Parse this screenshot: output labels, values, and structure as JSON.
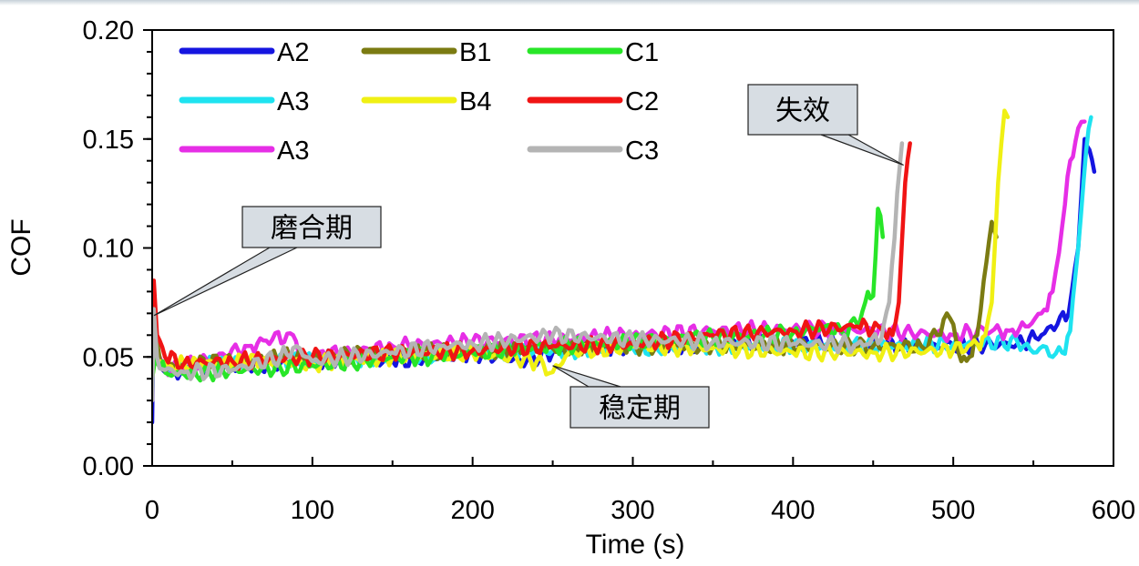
{
  "chart_data": {
    "type": "line",
    "xlabel": "Time (s)",
    "ylabel": "COF",
    "xlim": [
      0,
      600
    ],
    "ylim": [
      0,
      0.2
    ],
    "xticks": [
      0,
      100,
      200,
      300,
      400,
      500,
      600
    ],
    "xtick_labels": [
      "0",
      "100",
      "200",
      "300",
      "400",
      "500",
      "600"
    ],
    "yticks": [
      0,
      0.05,
      0.1,
      0.15,
      0.2
    ],
    "ytick_labels": [
      "0.00",
      "0.05",
      "0.10",
      "0.15",
      "0.20"
    ],
    "grid": false,
    "legend_position": "top-left",
    "series": [
      {
        "name": "A2",
        "color": "#1515e0",
        "points": [
          [
            0,
            0.02
          ],
          [
            1,
            0.08
          ],
          [
            3,
            0.05
          ],
          [
            8,
            0.043
          ],
          [
            20,
            0.044
          ],
          [
            40,
            0.045
          ],
          [
            60,
            0.046
          ],
          [
            80,
            0.047
          ],
          [
            100,
            0.048
          ],
          [
            120,
            0.05
          ],
          [
            150,
            0.048
          ],
          [
            180,
            0.05
          ],
          [
            200,
            0.052
          ],
          [
            230,
            0.048
          ],
          [
            250,
            0.052
          ],
          [
            280,
            0.054
          ],
          [
            300,
            0.055
          ],
          [
            350,
            0.056
          ],
          [
            400,
            0.057
          ],
          [
            450,
            0.056
          ],
          [
            500,
            0.055
          ],
          [
            540,
            0.056
          ],
          [
            555,
            0.06
          ],
          [
            565,
            0.065
          ],
          [
            572,
            0.07
          ],
          [
            578,
            0.1
          ],
          [
            582,
            0.15
          ],
          [
            585,
            0.145
          ],
          [
            588,
            0.135
          ]
        ]
      },
      {
        "name": "A3",
        "color": "#1ee3f0",
        "points": [
          [
            0,
            0.03
          ],
          [
            1,
            0.07
          ],
          [
            3,
            0.05
          ],
          [
            8,
            0.045
          ],
          [
            20,
            0.046
          ],
          [
            50,
            0.047
          ],
          [
            100,
            0.049
          ],
          [
            150,
            0.05
          ],
          [
            200,
            0.052
          ],
          [
            250,
            0.053
          ],
          [
            300,
            0.054
          ],
          [
            350,
            0.055
          ],
          [
            400,
            0.055
          ],
          [
            450,
            0.055
          ],
          [
            500,
            0.056
          ],
          [
            540,
            0.057
          ],
          [
            550,
            0.052
          ],
          [
            556,
            0.055
          ],
          [
            562,
            0.05
          ],
          [
            568,
            0.052
          ],
          [
            573,
            0.062
          ],
          [
            578,
            0.1
          ],
          [
            583,
            0.145
          ],
          [
            586,
            0.16
          ]
        ]
      },
      {
        "name": "A3",
        "color": "#e62ee6",
        "points": [
          [
            0,
            0.03
          ],
          [
            1,
            0.08
          ],
          [
            3,
            0.05
          ],
          [
            8,
            0.044
          ],
          [
            20,
            0.046
          ],
          [
            40,
            0.05
          ],
          [
            60,
            0.055
          ],
          [
            75,
            0.058
          ],
          [
            88,
            0.06
          ],
          [
            95,
            0.05
          ],
          [
            120,
            0.052
          ],
          [
            150,
            0.055
          ],
          [
            180,
            0.056
          ],
          [
            200,
            0.057
          ],
          [
            250,
            0.058
          ],
          [
            300,
            0.06
          ],
          [
            350,
            0.062
          ],
          [
            400,
            0.063
          ],
          [
            450,
            0.062
          ],
          [
            500,
            0.06
          ],
          [
            520,
            0.062
          ],
          [
            535,
            0.062
          ],
          [
            545,
            0.064
          ],
          [
            555,
            0.07
          ],
          [
            562,
            0.08
          ],
          [
            568,
            0.11
          ],
          [
            573,
            0.14
          ],
          [
            578,
            0.155
          ],
          [
            582,
            0.158
          ]
        ]
      },
      {
        "name": "B1",
        "color": "#7b7b12",
        "points": [
          [
            0,
            0.04
          ],
          [
            2,
            0.06
          ],
          [
            5,
            0.048
          ],
          [
            10,
            0.045
          ],
          [
            20,
            0.047
          ],
          [
            50,
            0.048
          ],
          [
            80,
            0.05
          ],
          [
            100,
            0.05
          ],
          [
            150,
            0.052
          ],
          [
            200,
            0.053
          ],
          [
            250,
            0.054
          ],
          [
            300,
            0.055
          ],
          [
            350,
            0.055
          ],
          [
            400,
            0.055
          ],
          [
            450,
            0.055
          ],
          [
            480,
            0.055
          ],
          [
            490,
            0.06
          ],
          [
            496,
            0.07
          ],
          [
            500,
            0.065
          ],
          [
            505,
            0.048
          ],
          [
            510,
            0.05
          ],
          [
            515,
            0.06
          ],
          [
            519,
            0.085
          ],
          [
            524,
            0.112
          ],
          [
            527,
            0.105
          ]
        ]
      },
      {
        "name": "B4",
        "color": "#f0f014",
        "points": [
          [
            0,
            0.04
          ],
          [
            2,
            0.05
          ],
          [
            5,
            0.048
          ],
          [
            10,
            0.046
          ],
          [
            30,
            0.047
          ],
          [
            60,
            0.048
          ],
          [
            100,
            0.047
          ],
          [
            150,
            0.05
          ],
          [
            200,
            0.052
          ],
          [
            240,
            0.048
          ],
          [
            250,
            0.043
          ],
          [
            260,
            0.052
          ],
          [
            300,
            0.055
          ],
          [
            350,
            0.054
          ],
          [
            400,
            0.052
          ],
          [
            450,
            0.052
          ],
          [
            500,
            0.053
          ],
          [
            515,
            0.056
          ],
          [
            520,
            0.06
          ],
          [
            524,
            0.075
          ],
          [
            528,
            0.13
          ],
          [
            532,
            0.163
          ],
          [
            534,
            0.16
          ]
        ]
      },
      {
        "name": "C1",
        "color": "#28e628",
        "points": [
          [
            0,
            0.04
          ],
          [
            2,
            0.05
          ],
          [
            5,
            0.045
          ],
          [
            10,
            0.042
          ],
          [
            20,
            0.042
          ],
          [
            50,
            0.044
          ],
          [
            80,
            0.045
          ],
          [
            100,
            0.046
          ],
          [
            130,
            0.048
          ],
          [
            150,
            0.05
          ],
          [
            180,
            0.05
          ],
          [
            200,
            0.052
          ],
          [
            250,
            0.055
          ],
          [
            300,
            0.057
          ],
          [
            350,
            0.059
          ],
          [
            400,
            0.061
          ],
          [
            420,
            0.064
          ],
          [
            430,
            0.062
          ],
          [
            440,
            0.065
          ],
          [
            445,
            0.075
          ],
          [
            450,
            0.078
          ],
          [
            453,
            0.118
          ],
          [
            456,
            0.105
          ]
        ]
      },
      {
        "name": "C2",
        "color": "#f01414",
        "points": [
          [
            0,
            0.04
          ],
          [
            1,
            0.085
          ],
          [
            3,
            0.06
          ],
          [
            8,
            0.05
          ],
          [
            20,
            0.047
          ],
          [
            50,
            0.048
          ],
          [
            100,
            0.05
          ],
          [
            150,
            0.052
          ],
          [
            200,
            0.053
          ],
          [
            250,
            0.055
          ],
          [
            300,
            0.056
          ],
          [
            350,
            0.06
          ],
          [
            400,
            0.062
          ],
          [
            440,
            0.064
          ],
          [
            455,
            0.063
          ],
          [
            462,
            0.06
          ],
          [
            466,
            0.075
          ],
          [
            470,
            0.13
          ],
          [
            473,
            0.148
          ]
        ]
      },
      {
        "name": "C3",
        "color": "#b4b4b4",
        "points": [
          [
            0,
            0.03
          ],
          [
            1,
            0.072
          ],
          [
            3,
            0.05
          ],
          [
            8,
            0.044
          ],
          [
            20,
            0.043
          ],
          [
            50,
            0.044
          ],
          [
            80,
            0.05
          ],
          [
            90,
            0.055
          ],
          [
            100,
            0.048
          ],
          [
            120,
            0.05
          ],
          [
            150,
            0.052
          ],
          [
            180,
            0.055
          ],
          [
            200,
            0.056
          ],
          [
            250,
            0.06
          ],
          [
            300,
            0.058
          ],
          [
            350,
            0.057
          ],
          [
            400,
            0.056
          ],
          [
            440,
            0.056
          ],
          [
            455,
            0.058
          ],
          [
            460,
            0.075
          ],
          [
            465,
            0.125
          ],
          [
            468,
            0.148
          ]
        ]
      }
    ],
    "annotations": [
      {
        "text": "磨合期",
        "x": 0,
        "y": 0.069
      },
      {
        "text": "稳定期",
        "x": 250,
        "y": 0.046
      },
      {
        "text": "失效",
        "x": 469,
        "y": 0.138
      }
    ]
  }
}
